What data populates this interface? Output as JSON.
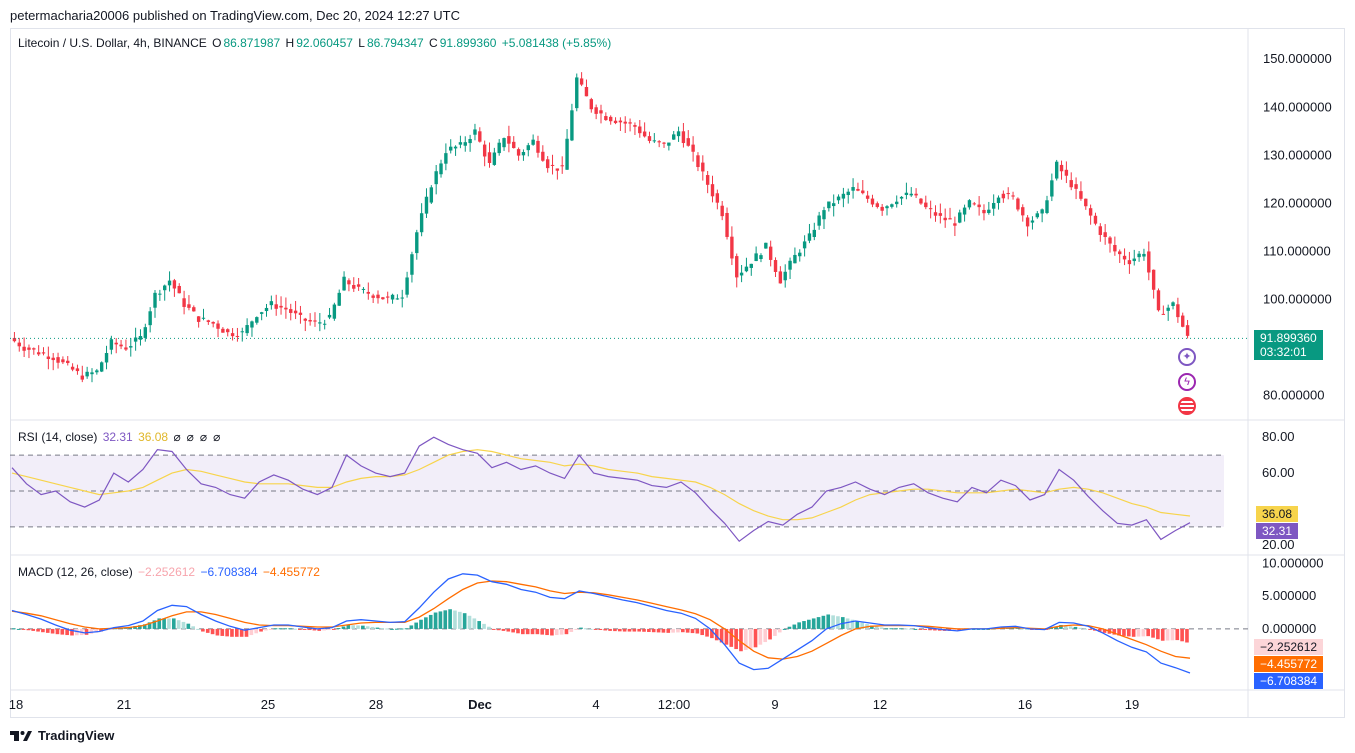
{
  "header": {
    "publisher_line": "petermacharia20006 published on TradingView.com, Dec 20, 2024 12:27 UTC"
  },
  "symbol": {
    "name": "Litecoin / U.S. Dollar, 4h, BINANCE",
    "o_label": "O",
    "o_value": "86.871987",
    "h_label": "H",
    "h_value": "92.060457",
    "l_label": "L",
    "l_value": "86.794347",
    "c_label": "C",
    "c_value": "91.899360",
    "change": "+5.081438 (+5.85%)"
  },
  "last_price": {
    "value": "91.899360",
    "countdown": "03:32:01"
  },
  "rsi": {
    "label": "RSI (14, close)",
    "value": "32.31",
    "ma_value": "36.08",
    "value_tag": "32.31",
    "ma_tag": "36.08"
  },
  "macd": {
    "label": "MACD (12, 26, close)",
    "hist": "−2.252612",
    "macd": "−6.708384",
    "signal": "−4.455772",
    "hist_tag": "−2.252612",
    "signal_tag": "−4.455772",
    "macd_tag": "−6.708384"
  },
  "footer": {
    "brand": "TradingView"
  },
  "colors": {
    "up": "#089981",
    "down": "#f23645",
    "rsi": "#7e57c2",
    "rsi_ma": "#f7d44c",
    "macd": "#2962ff",
    "signal": "#ff6d00"
  },
  "chart_data": [
    {
      "type": "candlestick",
      "title": "Litecoin / U.S. Dollar, 4h, BINANCE",
      "y_ticks": [
        "150.000000",
        "140.000000",
        "130.000000",
        "120.000000",
        "110.000000",
        "100.000000",
        "80.000000"
      ],
      "x_ticks": [
        "18",
        "21",
        "25",
        "28",
        "Dec",
        "4",
        "12:00",
        "9",
        "12",
        "16",
        "19"
      ],
      "ylim": [
        77,
        154
      ],
      "close_path": [
        92,
        90,
        89,
        88,
        86,
        84,
        85,
        91,
        90,
        92,
        101,
        104,
        99,
        96,
        95,
        93,
        93,
        97,
        99,
        98,
        96,
        95,
        96,
        104,
        102,
        101,
        100,
        101,
        114,
        124,
        131,
        132,
        135,
        128,
        134,
        130,
        133,
        128,
        127,
        146,
        140,
        138,
        137,
        136,
        133,
        132,
        135,
        130,
        124,
        118,
        105,
        108,
        111,
        104,
        109,
        113,
        119,
        121,
        123,
        121,
        119,
        121,
        122,
        119,
        117,
        116,
        120,
        118,
        122,
        121,
        116,
        118,
        128,
        124,
        119,
        114,
        110,
        108,
        110,
        97,
        99,
        92
      ]
    },
    {
      "type": "line",
      "title": "RSI (14, close)",
      "y_ticks": [
        "80.00",
        "60.00",
        "20.00"
      ],
      "ylim": [
        16,
        84
      ],
      "bands": [
        70,
        50,
        30
      ],
      "series": [
        {
          "name": "RSI",
          "values": [
            63,
            54,
            48,
            50,
            44,
            41,
            45,
            60,
            55,
            62,
            73,
            72,
            62,
            54,
            52,
            48,
            46,
            55,
            59,
            56,
            51,
            48,
            52,
            70,
            64,
            60,
            58,
            60,
            75,
            80,
            76,
            73,
            71,
            63,
            66,
            62,
            64,
            60,
            57,
            70,
            60,
            58,
            57,
            56,
            53,
            52,
            55,
            49,
            40,
            32,
            22,
            28,
            33,
            31,
            37,
            41,
            50,
            52,
            55,
            51,
            48,
            52,
            54,
            49,
            46,
            44,
            52,
            49,
            56,
            53,
            45,
            48,
            62,
            56,
            47,
            39,
            32,
            31,
            34,
            23,
            28,
            32.31
          ]
        },
        {
          "name": "RSI MA",
          "values": [
            60,
            58,
            56,
            54,
            52,
            50,
            48,
            49,
            50,
            52,
            56,
            60,
            62,
            61,
            59,
            57,
            55,
            54,
            54,
            54,
            53,
            52,
            52,
            55,
            57,
            58,
            58,
            59,
            62,
            66,
            70,
            72,
            73,
            72,
            70,
            68,
            67,
            66,
            64,
            65,
            64,
            62,
            61,
            60,
            58,
            57,
            56,
            55,
            52,
            48,
            43,
            39,
            36,
            34,
            34,
            35,
            38,
            41,
            45,
            48,
            49,
            50,
            51,
            51,
            50,
            49,
            49,
            49,
            50,
            51,
            50,
            49,
            51,
            52,
            51,
            49,
            46,
            43,
            41,
            38,
            37,
            36.08
          ]
        }
      ]
    },
    {
      "type": "line",
      "title": "MACD (12, 26, close)",
      "y_ticks": [
        "10.000000",
        "5.000000",
        "0.000000"
      ],
      "ylim": [
        -9,
        10.5
      ],
      "series": [
        {
          "name": "MACD",
          "values": [
            2.8,
            2.2,
            1.5,
            0.6,
            -0.2,
            -0.6,
            -0.4,
            0.2,
            0.5,
            1.2,
            2.8,
            3.6,
            3.4,
            2.2,
            1.2,
            0.4,
            -0.2,
            0.2,
            0.6,
            0.6,
            0.3,
            0,
            0.2,
            1.2,
            1.4,
            1.2,
            1.0,
            1.1,
            3.2,
            5.6,
            7.6,
            8.4,
            8.2,
            7.2,
            6.8,
            6.0,
            5.6,
            4.8,
            4.6,
            5.8,
            5.4,
            4.9,
            4.4,
            4.0,
            3.4,
            2.8,
            2.4,
            1.6,
            0,
            -2.4,
            -5.2,
            -6.2,
            -6.0,
            -4.6,
            -3.2,
            -1.8,
            0,
            0.8,
            1.2,
            0.9,
            0.6,
            0.6,
            0.5,
            0.2,
            -0.1,
            -0.3,
            0,
            0,
            0.3,
            0.4,
            0,
            -0.1,
            1.0,
            0.9,
            0.4,
            -0.6,
            -1.8,
            -2.8,
            -3.5,
            -5.2,
            -5.9,
            -6.708384
          ]
        },
        {
          "name": "Signal",
          "values": [
            2.7,
            2.4,
            2.0,
            1.4,
            0.8,
            0.3,
            0,
            0.1,
            0.2,
            0.5,
            1.2,
            2.0,
            2.6,
            2.6,
            2.2,
            1.6,
            1.0,
            0.6,
            0.5,
            0.5,
            0.4,
            0.3,
            0.3,
            0.6,
            0.9,
            1.0,
            1.0,
            1.0,
            1.8,
            3.1,
            4.6,
            6.0,
            7.0,
            7.3,
            7.2,
            6.8,
            6.4,
            5.8,
            5.4,
            5.6,
            5.5,
            5.2,
            4.8,
            4.4,
            3.9,
            3.4,
            2.9,
            2.3,
            1.4,
            0,
            -1.8,
            -3.4,
            -4.4,
            -4.6,
            -4.2,
            -3.4,
            -2.2,
            -1.0,
            0,
            0.4,
            0.5,
            0.5,
            0.5,
            0.4,
            0.2,
            0,
            0,
            0,
            0.1,
            0.2,
            0.1,
            0,
            0.4,
            0.6,
            0.5,
            0,
            -0.8,
            -1.6,
            -2.4,
            -3.4,
            -4.2,
            -4.455772
          ]
        }
      ]
    }
  ]
}
